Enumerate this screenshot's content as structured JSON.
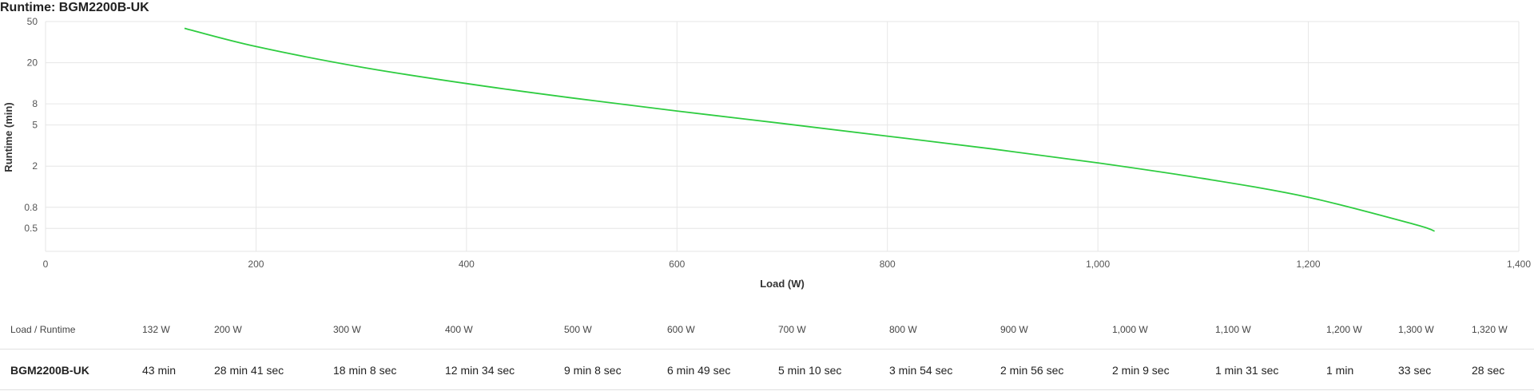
{
  "chart_data": {
    "type": "line",
    "title": "Runtime: BGM2200B-UK",
    "xlabel": "Load (W)",
    "ylabel": "Runtime (min)",
    "xlim": [
      0,
      1400
    ],
    "ylim": [
      0.3,
      50
    ],
    "yscale": "log",
    "grid": true,
    "x_ticks": [
      0,
      200,
      400,
      600,
      800,
      1000,
      1200,
      1400
    ],
    "x_tick_labels": [
      "0",
      "200",
      "400",
      "600",
      "800",
      "1,000",
      "1,200",
      "1,400"
    ],
    "y_ticks": [
      0.5,
      0.8,
      2,
      5,
      8,
      20,
      50
    ],
    "y_tick_labels": [
      "0.5",
      "0.8",
      "2",
      "5",
      "8",
      "20",
      "50"
    ],
    "series": [
      {
        "color": "#2ecc40",
        "x": [
          132,
          200,
          300,
          400,
          500,
          600,
          700,
          800,
          900,
          1000,
          1100,
          1200,
          1300,
          1320
        ],
        "y": [
          43,
          28.68,
          18.13,
          12.57,
          9.13,
          6.82,
          5.17,
          3.9,
          2.93,
          2.15,
          1.52,
          1.0,
          0.55,
          0.47
        ]
      }
    ]
  },
  "table": {
    "header_label": "Load / Runtime",
    "loads": [
      "132 W",
      "200 W",
      "300 W",
      "400 W",
      "500 W",
      "600 W",
      "700 W",
      "800 W",
      "900 W",
      "1,000 W",
      "1,100 W",
      "1,200 W",
      "1,300 W",
      "1,320 W"
    ],
    "row_label": "BGM2200B-UK",
    "runtimes": [
      "43 min",
      "28 min 41 sec",
      "18 min 8 sec",
      "12 min 34 sec",
      "9 min 8 sec",
      "6 min 49 sec",
      "5 min 10 sec",
      "3 min 54 sec",
      "2 min 56 sec",
      "2 min 9 sec",
      "1 min 31 sec",
      "1 min",
      "33 sec",
      "28 sec"
    ]
  }
}
